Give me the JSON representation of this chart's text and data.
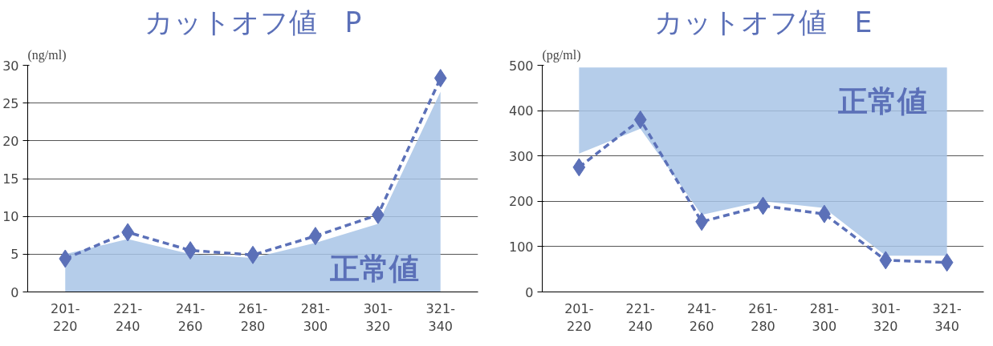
{
  "chart_data": [
    {
      "type": "line",
      "title": "カットオフ値　P",
      "ylabel": "(ng/ml)",
      "categories": [
        "201-220",
        "221-240",
        "241-260",
        "261-280",
        "281-300",
        "301-320",
        "321-340"
      ],
      "series": [
        {
          "color": "#5b70b8",
          "values": [
            4.4,
            7.9,
            5.5,
            4.9,
            7.4,
            10.2,
            28.3
          ],
          "lower": [
            0,
            0,
            0,
            0,
            0,
            0,
            0
          ],
          "upper": [
            5,
            7,
            5,
            4.5,
            6.5,
            9,
            26.5
          ]
        }
      ],
      "ylim": [
        0,
        30
      ],
      "yticks": [
        0,
        5,
        10,
        15,
        20,
        25,
        30
      ],
      "grid": "y",
      "marker": "diamond",
      "line_style": "dashed",
      "annotations": [
        "正常値"
      ]
    },
    {
      "type": "line",
      "title": "カットオフ値　E",
      "ylabel": "(pg/ml)",
      "categories": [
        "201-220",
        "221-240",
        "241-260",
        "261-280",
        "281-300",
        "301-320",
        "321-340"
      ],
      "series": [
        {
          "color": "#5b70b8",
          "values": [
            275,
            380,
            155,
            190,
            172,
            70,
            65
          ],
          "lower": [
            305,
            360,
            170,
            200,
            185,
            80,
            80
          ],
          "upper": [
            495,
            495,
            495,
            495,
            495,
            495,
            495
          ]
        }
      ],
      "ylim": [
        0,
        500
      ],
      "yticks": [
        0,
        100,
        200,
        300,
        400,
        500
      ],
      "grid": "y",
      "marker": "diamond",
      "line_style": "dashed",
      "annotations": [
        "正常値"
      ]
    }
  ]
}
